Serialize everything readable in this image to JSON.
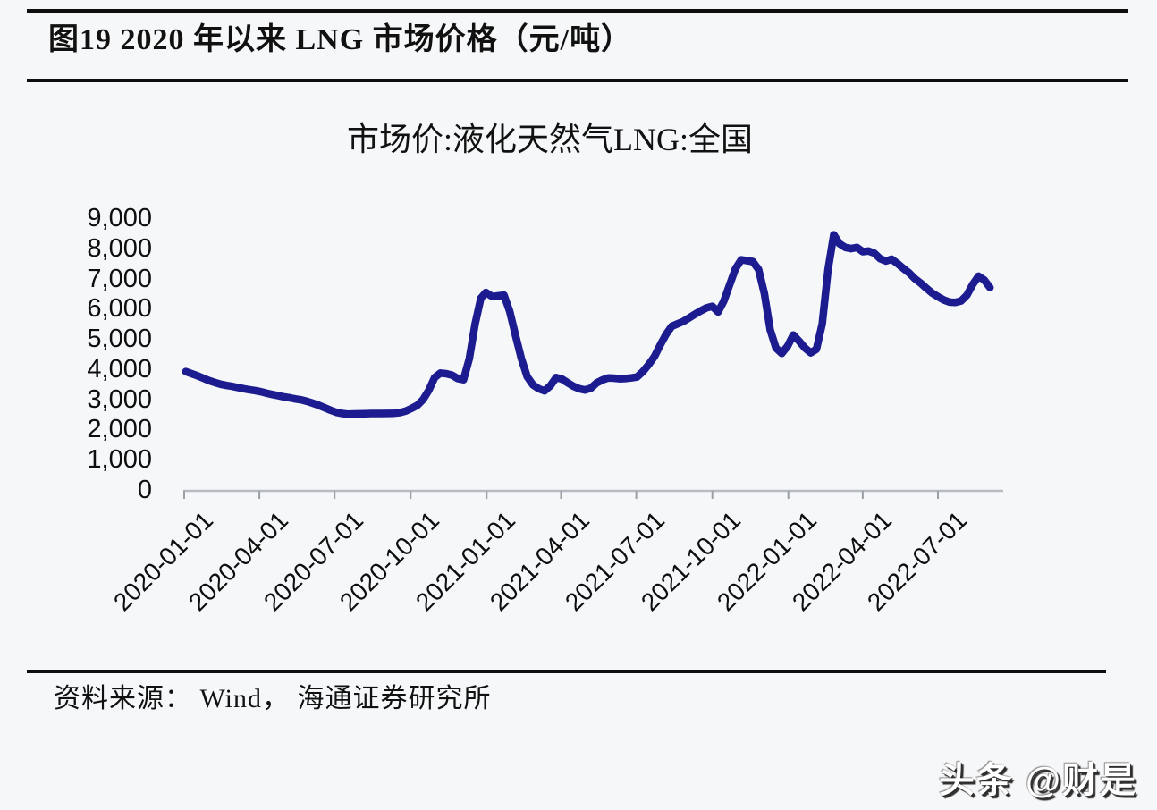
{
  "figure": {
    "title": "图19 2020 年以来 LNG 市场价格（元/吨）",
    "source_label": "资料来源： Wind， 海通证券研究所",
    "watermark": "头条 @财是"
  },
  "colors": {
    "line": "#1c1c90",
    "axis": "#b7bcc2",
    "tick": "#9aa0a8",
    "text": "#0e0e0e",
    "rule": "#0e0e0e",
    "background": "#f5f7f9"
  },
  "chart_data": {
    "type": "line",
    "title": "市场价:液化天然气LNG:全国",
    "xlabel": "",
    "ylabel": "",
    "grid": false,
    "legend": "none",
    "ylim": [
      0,
      9000
    ],
    "y_ticks": [
      0,
      1000,
      2000,
      3000,
      4000,
      5000,
      6000,
      7000,
      8000,
      9000
    ],
    "y_tick_labels": [
      "0",
      "1,000",
      "2,000",
      "3,000",
      "4,000",
      "5,000",
      "6,000",
      "7,000",
      "8,000",
      "9,000"
    ],
    "x_ticks": [
      "2020-01-01",
      "2020-04-01",
      "2020-07-01",
      "2020-10-01",
      "2021-01-01",
      "2021-04-01",
      "2021-07-01",
      "2021-10-01",
      "2022-01-01",
      "2022-04-01",
      "2022-07-01"
    ],
    "x_axis_end": "2022-09-18",
    "series": [
      {
        "name": "市场价:液化天然气LNG:全国",
        "unit": "元/吨",
        "points": [
          [
            "2020-01-03",
            3920
          ],
          [
            "2020-01-10",
            3850
          ],
          [
            "2020-01-17",
            3780
          ],
          [
            "2020-01-24",
            3700
          ],
          [
            "2020-01-31",
            3620
          ],
          [
            "2020-02-07",
            3560
          ],
          [
            "2020-02-14",
            3500
          ],
          [
            "2020-02-21",
            3460
          ],
          [
            "2020-02-28",
            3430
          ],
          [
            "2020-03-06",
            3390
          ],
          [
            "2020-03-13",
            3350
          ],
          [
            "2020-03-20",
            3320
          ],
          [
            "2020-03-27",
            3290
          ],
          [
            "2020-04-03",
            3250
          ],
          [
            "2020-04-10",
            3200
          ],
          [
            "2020-04-17",
            3160
          ],
          [
            "2020-04-24",
            3120
          ],
          [
            "2020-05-01",
            3080
          ],
          [
            "2020-05-08",
            3050
          ],
          [
            "2020-05-15",
            3010
          ],
          [
            "2020-05-22",
            2980
          ],
          [
            "2020-05-29",
            2930
          ],
          [
            "2020-06-05",
            2870
          ],
          [
            "2020-06-12",
            2800
          ],
          [
            "2020-06-19",
            2720
          ],
          [
            "2020-06-26",
            2640
          ],
          [
            "2020-07-03",
            2570
          ],
          [
            "2020-07-10",
            2530
          ],
          [
            "2020-07-17",
            2510
          ],
          [
            "2020-07-24",
            2515
          ],
          [
            "2020-07-31",
            2520
          ],
          [
            "2020-08-07",
            2525
          ],
          [
            "2020-08-14",
            2530
          ],
          [
            "2020-08-21",
            2530
          ],
          [
            "2020-08-28",
            2530
          ],
          [
            "2020-09-04",
            2535
          ],
          [
            "2020-09-11",
            2540
          ],
          [
            "2020-09-18",
            2560
          ],
          [
            "2020-09-25",
            2610
          ],
          [
            "2020-10-02",
            2700
          ],
          [
            "2020-10-09",
            2800
          ],
          [
            "2020-10-16",
            2990
          ],
          [
            "2020-10-23",
            3300
          ],
          [
            "2020-10-30",
            3720
          ],
          [
            "2020-11-06",
            3870
          ],
          [
            "2020-11-13",
            3850
          ],
          [
            "2020-11-20",
            3800
          ],
          [
            "2020-11-27",
            3690
          ],
          [
            "2020-12-04",
            3650
          ],
          [
            "2020-12-11",
            4350
          ],
          [
            "2020-12-18",
            5500
          ],
          [
            "2020-12-25",
            6350
          ],
          [
            "2020-12-31",
            6540
          ],
          [
            "2021-01-08",
            6400
          ],
          [
            "2021-01-15",
            6430
          ],
          [
            "2021-01-22",
            6450
          ],
          [
            "2021-01-29",
            5900
          ],
          [
            "2021-02-05",
            5100
          ],
          [
            "2021-02-12",
            4350
          ],
          [
            "2021-02-19",
            3750
          ],
          [
            "2021-02-26",
            3480
          ],
          [
            "2021-03-05",
            3350
          ],
          [
            "2021-03-12",
            3280
          ],
          [
            "2021-03-19",
            3450
          ],
          [
            "2021-03-26",
            3720
          ],
          [
            "2021-04-02",
            3670
          ],
          [
            "2021-04-09",
            3550
          ],
          [
            "2021-04-16",
            3430
          ],
          [
            "2021-04-23",
            3350
          ],
          [
            "2021-04-30",
            3310
          ],
          [
            "2021-05-07",
            3370
          ],
          [
            "2021-05-14",
            3540
          ],
          [
            "2021-05-21",
            3640
          ],
          [
            "2021-05-28",
            3710
          ],
          [
            "2021-06-04",
            3700
          ],
          [
            "2021-06-11",
            3680
          ],
          [
            "2021-06-18",
            3690
          ],
          [
            "2021-06-25",
            3710
          ],
          [
            "2021-07-02",
            3740
          ],
          [
            "2021-07-09",
            3920
          ],
          [
            "2021-07-16",
            4150
          ],
          [
            "2021-07-23",
            4420
          ],
          [
            "2021-07-30",
            4800
          ],
          [
            "2021-08-06",
            5150
          ],
          [
            "2021-08-13",
            5420
          ],
          [
            "2021-08-20",
            5500
          ],
          [
            "2021-08-27",
            5580
          ],
          [
            "2021-09-03",
            5700
          ],
          [
            "2021-09-10",
            5820
          ],
          [
            "2021-09-17",
            5930
          ],
          [
            "2021-09-24",
            6030
          ],
          [
            "2021-10-01",
            6080
          ],
          [
            "2021-10-08",
            5890
          ],
          [
            "2021-10-15",
            6260
          ],
          [
            "2021-10-22",
            6800
          ],
          [
            "2021-10-29",
            7320
          ],
          [
            "2021-11-05",
            7620
          ],
          [
            "2021-11-12",
            7590
          ],
          [
            "2021-11-19",
            7560
          ],
          [
            "2021-11-26",
            7300
          ],
          [
            "2021-12-03",
            6500
          ],
          [
            "2021-12-10",
            5300
          ],
          [
            "2021-12-17",
            4700
          ],
          [
            "2021-12-24",
            4520
          ],
          [
            "2021-12-31",
            4760
          ],
          [
            "2022-01-07",
            5130
          ],
          [
            "2022-01-14",
            4930
          ],
          [
            "2022-01-21",
            4700
          ],
          [
            "2022-01-28",
            4540
          ],
          [
            "2022-02-04",
            4660
          ],
          [
            "2022-02-11",
            5500
          ],
          [
            "2022-02-18",
            7300
          ],
          [
            "2022-02-25",
            8450
          ],
          [
            "2022-03-04",
            8150
          ],
          [
            "2022-03-11",
            8030
          ],
          [
            "2022-03-18",
            7990
          ],
          [
            "2022-03-25",
            8030
          ],
          [
            "2022-04-01",
            7890
          ],
          [
            "2022-04-08",
            7910
          ],
          [
            "2022-04-15",
            7840
          ],
          [
            "2022-04-22",
            7660
          ],
          [
            "2022-04-29",
            7580
          ],
          [
            "2022-05-06",
            7640
          ],
          [
            "2022-05-13",
            7500
          ],
          [
            "2022-05-20",
            7340
          ],
          [
            "2022-05-27",
            7190
          ],
          [
            "2022-06-03",
            7000
          ],
          [
            "2022-06-10",
            6850
          ],
          [
            "2022-06-17",
            6680
          ],
          [
            "2022-06-24",
            6520
          ],
          [
            "2022-07-01",
            6400
          ],
          [
            "2022-07-08",
            6290
          ],
          [
            "2022-07-15",
            6220
          ],
          [
            "2022-07-22",
            6210
          ],
          [
            "2022-07-29",
            6260
          ],
          [
            "2022-08-05",
            6450
          ],
          [
            "2022-08-12",
            6800
          ],
          [
            "2022-08-19",
            7080
          ],
          [
            "2022-08-26",
            6950
          ],
          [
            "2022-09-02",
            6700
          ]
        ]
      }
    ]
  }
}
